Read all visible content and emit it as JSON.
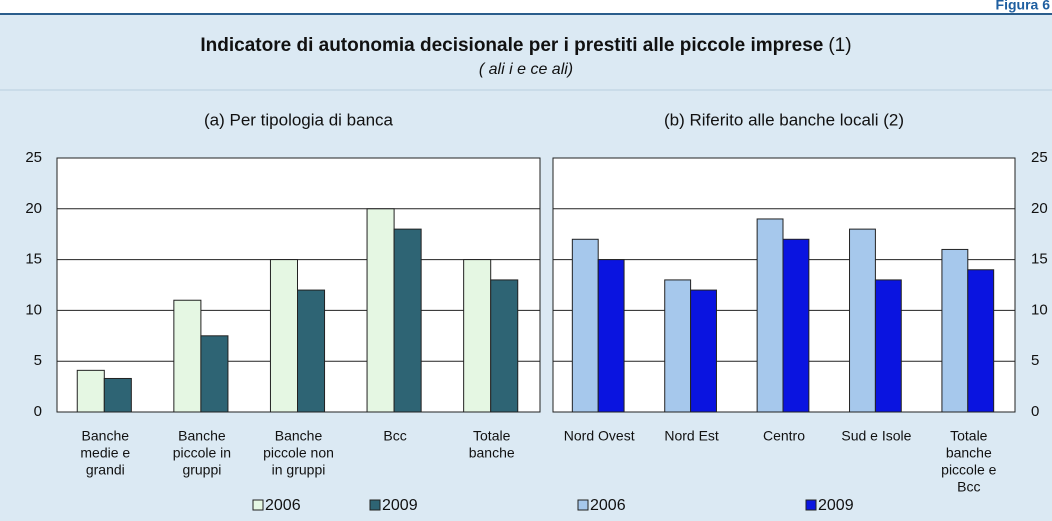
{
  "header": {
    "figure": "Figura 6",
    "title": "Indicatore di autonomia decisionale per i prestiti alle piccole imprese",
    "title_note": "(1)",
    "subtitle": "( ali i e ce ali)"
  },
  "chart_data": [
    {
      "type": "bar",
      "title": "(a) Per tipologia di banca",
      "categories": [
        [
          "Banche",
          "medie e",
          "grandi"
        ],
        [
          "Banche",
          "piccole in",
          "gruppi"
        ],
        [
          "Banche",
          "piccole non",
          "in gruppi"
        ],
        [
          "Bcc"
        ],
        [
          "Totale",
          "banche"
        ]
      ],
      "series": [
        {
          "name": "2006",
          "color": "#e5f7e3",
          "values": [
            4.1,
            11,
            15,
            20,
            15
          ]
        },
        {
          "name": "2009",
          "color": "#2e6474",
          "values": [
            3.3,
            7.5,
            12,
            18,
            13
          ]
        }
      ],
      "ylim": [
        0,
        25
      ],
      "yticks": [
        0,
        5,
        10,
        15,
        20,
        25
      ],
      "y_axis_side": "left",
      "grid": true
    },
    {
      "type": "bar",
      "title": "(b) Riferito alle banche locali (2)",
      "categories": [
        [
          "Nord Ovest"
        ],
        [
          "Nord Est"
        ],
        [
          "Centro"
        ],
        [
          "Sud e Isole"
        ],
        [
          "Totale",
          "banche",
          "piccole e",
          "Bcc"
        ]
      ],
      "series": [
        {
          "name": "2006",
          "color": "#a6c8ec",
          "values": [
            17,
            13,
            19,
            18,
            16
          ]
        },
        {
          "name": "2009",
          "color": "#0a14e0",
          "values": [
            15,
            12,
            17,
            13,
            14
          ]
        }
      ],
      "ylim": [
        0,
        25
      ],
      "yticks": [
        0,
        5,
        10,
        15,
        20,
        25
      ],
      "y_axis_side": "right",
      "grid": true
    }
  ]
}
